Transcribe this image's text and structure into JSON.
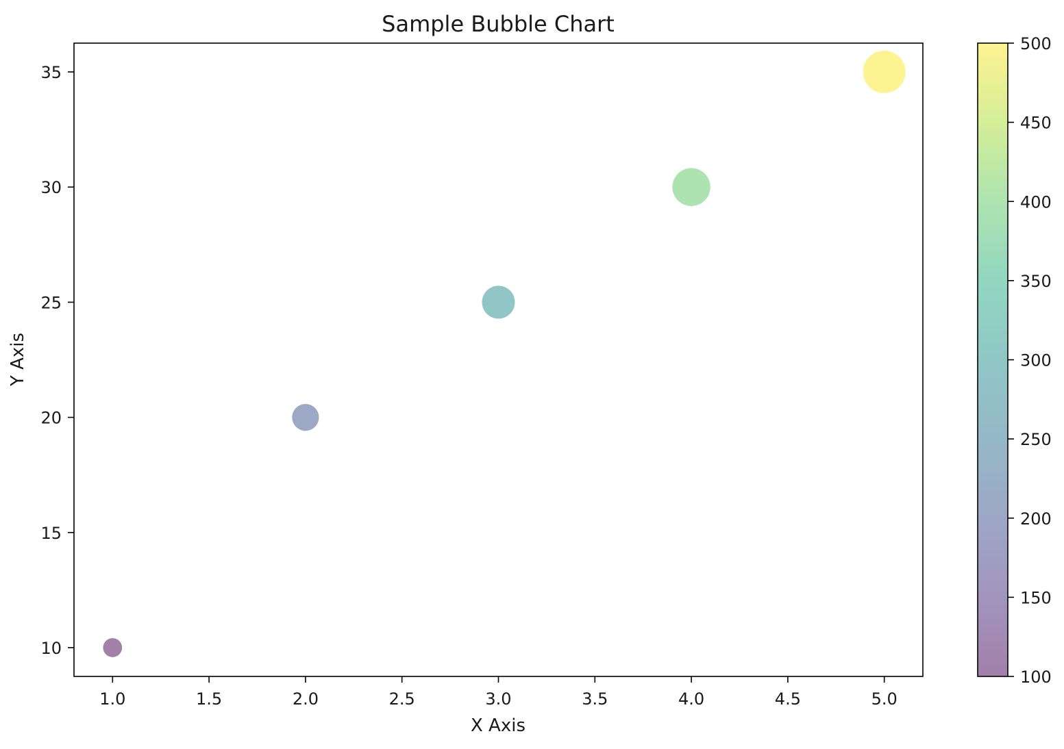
{
  "chart_data": {
    "type": "scatter",
    "title": "Sample Bubble Chart",
    "xlabel": "X Axis",
    "ylabel": "Y Axis",
    "xlim": [
      0.8,
      5.2
    ],
    "ylim": [
      8.75,
      36.25
    ],
    "xticks": [
      1.0,
      1.5,
      2.0,
      2.5,
      3.0,
      3.5,
      4.0,
      4.5,
      5.0
    ],
    "xtick_labels": [
      "1.0",
      "1.5",
      "2.0",
      "2.5",
      "3.0",
      "3.5",
      "4.0",
      "4.5",
      "5.0"
    ],
    "yticks": [
      10,
      15,
      20,
      25,
      30,
      35
    ],
    "ytick_labels": [
      "10",
      "15",
      "20",
      "25",
      "30",
      "35"
    ],
    "grid": false,
    "marker_alpha": 0.5,
    "points": [
      {
        "x": 1,
        "y": 10,
        "size": 100
      },
      {
        "x": 2,
        "y": 20,
        "size": 200
      },
      {
        "x": 3,
        "y": 25,
        "size": 300
      },
      {
        "x": 4,
        "y": 30,
        "size": 400
      },
      {
        "x": 5,
        "y": 35,
        "size": 500
      }
    ],
    "colorbar": {
      "colormap": "viridis",
      "range": [
        100,
        500
      ],
      "ticks": [
        100,
        150,
        200,
        250,
        300,
        350,
        400,
        450,
        500
      ],
      "tick_labels": [
        "100",
        "150",
        "200",
        "250",
        "300",
        "350",
        "400",
        "450",
        "500"
      ],
      "stops": [
        "#440154",
        "#472c7a",
        "#3b518b",
        "#2c718e",
        "#21908d",
        "#27ad81",
        "#5cc863",
        "#aadc32",
        "#fde725"
      ]
    }
  }
}
